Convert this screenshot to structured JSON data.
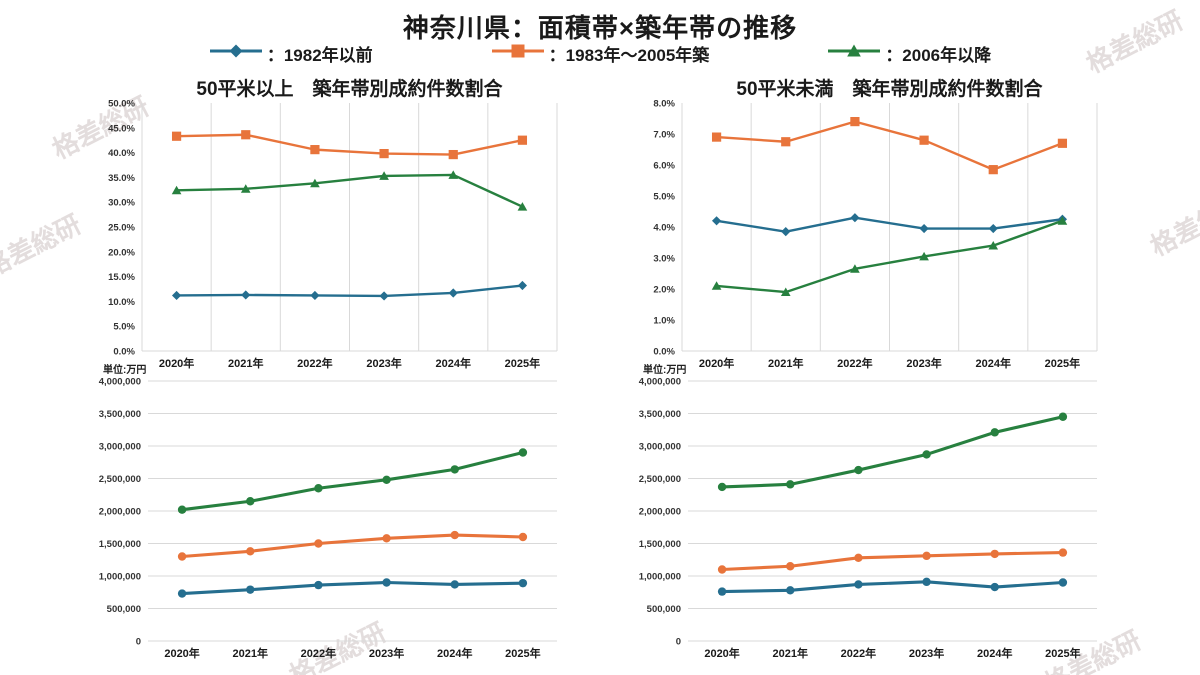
{
  "page": {
    "title": "神奈川県：面積帯×築年帯の推移"
  },
  "legend": {
    "items": [
      {
        "label": "：1982年以前",
        "color_key": "blue",
        "marker": "diamond"
      },
      {
        "label": "：1983年〜2005年築",
        "color_key": "orange",
        "marker": "square"
      },
      {
        "label": "：2006年以降",
        "color_key": "green",
        "marker": "triangle"
      }
    ]
  },
  "colors": {
    "blue": "#256e8f",
    "orange": "#e8743b",
    "green": "#27803f",
    "grid": "#d9d9d9",
    "tick_text": "#333333",
    "watermark": "#e3dddd"
  },
  "watermark": {
    "text": "格差総研"
  },
  "chart_data": [
    {
      "type": "line",
      "title": "50平米以上　築年帯別成約件数割合",
      "categories": [
        "2020年",
        "2021年",
        "2022年",
        "2023年",
        "2024年",
        "2025年"
      ],
      "ylim": [
        0,
        50
      ],
      "y_step": 5,
      "y_format": "percent",
      "grid": "vertical",
      "legend_position": "top-shared",
      "series": [
        {
          "name": "1982年以前",
          "color_key": "blue",
          "marker": "diamond",
          "values": [
            11.2,
            11.3,
            11.2,
            11.1,
            11.7,
            13.2
          ]
        },
        {
          "name": "1983年〜2005年築",
          "color_key": "orange",
          "marker": "square",
          "values": [
            43.3,
            43.6,
            40.6,
            39.8,
            39.6,
            42.5
          ]
        },
        {
          "name": "2006年以降",
          "color_key": "green",
          "marker": "triangle",
          "values": [
            32.4,
            32.7,
            33.8,
            35.3,
            35.5,
            29.1
          ]
        }
      ]
    },
    {
      "type": "line",
      "title": "50平米未満　築年帯別成約件数割合",
      "categories": [
        "2020年",
        "2021年",
        "2022年",
        "2023年",
        "2024年",
        "2025年"
      ],
      "ylim": [
        0,
        8
      ],
      "y_step": 1,
      "y_format": "percent",
      "grid": "vertical",
      "legend_position": "top-shared",
      "series": [
        {
          "name": "1982年以前",
          "color_key": "blue",
          "marker": "diamond",
          "values": [
            4.2,
            3.85,
            4.3,
            3.95,
            3.95,
            4.25
          ]
        },
        {
          "name": "1983年〜2005年築",
          "color_key": "orange",
          "marker": "square",
          "values": [
            6.9,
            6.75,
            7.4,
            6.8,
            5.85,
            6.7
          ]
        },
        {
          "name": "2006年以降",
          "color_key": "green",
          "marker": "triangle",
          "values": [
            2.1,
            1.9,
            2.65,
            3.05,
            3.4,
            4.2
          ]
        }
      ]
    },
    {
      "type": "line",
      "title": "",
      "unit": "単位:万円",
      "categories": [
        "2020年",
        "2021年",
        "2022年",
        "2023年",
        "2024年",
        "2025年"
      ],
      "ylim": [
        0,
        4000000
      ],
      "y_step": 500000,
      "y_format": "thousands",
      "grid": "horizontal",
      "legend_position": "top-shared",
      "series": [
        {
          "name": "1982年以前",
          "color_key": "blue",
          "marker": "circle",
          "values": [
            730000,
            790000,
            860000,
            900000,
            870000,
            890000
          ]
        },
        {
          "name": "1983年〜2005年築",
          "color_key": "orange",
          "marker": "circle",
          "values": [
            1300000,
            1380000,
            1500000,
            1580000,
            1630000,
            1600000
          ]
        },
        {
          "name": "2006年以降",
          "color_key": "green",
          "marker": "circle",
          "values": [
            2020000,
            2150000,
            2350000,
            2480000,
            2640000,
            2900000
          ]
        }
      ]
    },
    {
      "type": "line",
      "title": "",
      "unit": "単位:万円",
      "categories": [
        "2020年",
        "2021年",
        "2022年",
        "2023年",
        "2024年",
        "2025年"
      ],
      "ylim": [
        0,
        4000000
      ],
      "y_step": 500000,
      "y_format": "thousands",
      "grid": "horizontal",
      "legend_position": "top-shared",
      "series": [
        {
          "name": "1982年以前",
          "color_key": "blue",
          "marker": "circle",
          "values": [
            760000,
            780000,
            870000,
            910000,
            830000,
            900000
          ]
        },
        {
          "name": "1983年〜2005年築",
          "color_key": "orange",
          "marker": "circle",
          "values": [
            1100000,
            1150000,
            1280000,
            1310000,
            1340000,
            1360000
          ]
        },
        {
          "name": "2006年以降",
          "color_key": "green",
          "marker": "circle",
          "values": [
            2370000,
            2410000,
            2630000,
            2870000,
            3210000,
            3450000
          ]
        }
      ]
    }
  ]
}
